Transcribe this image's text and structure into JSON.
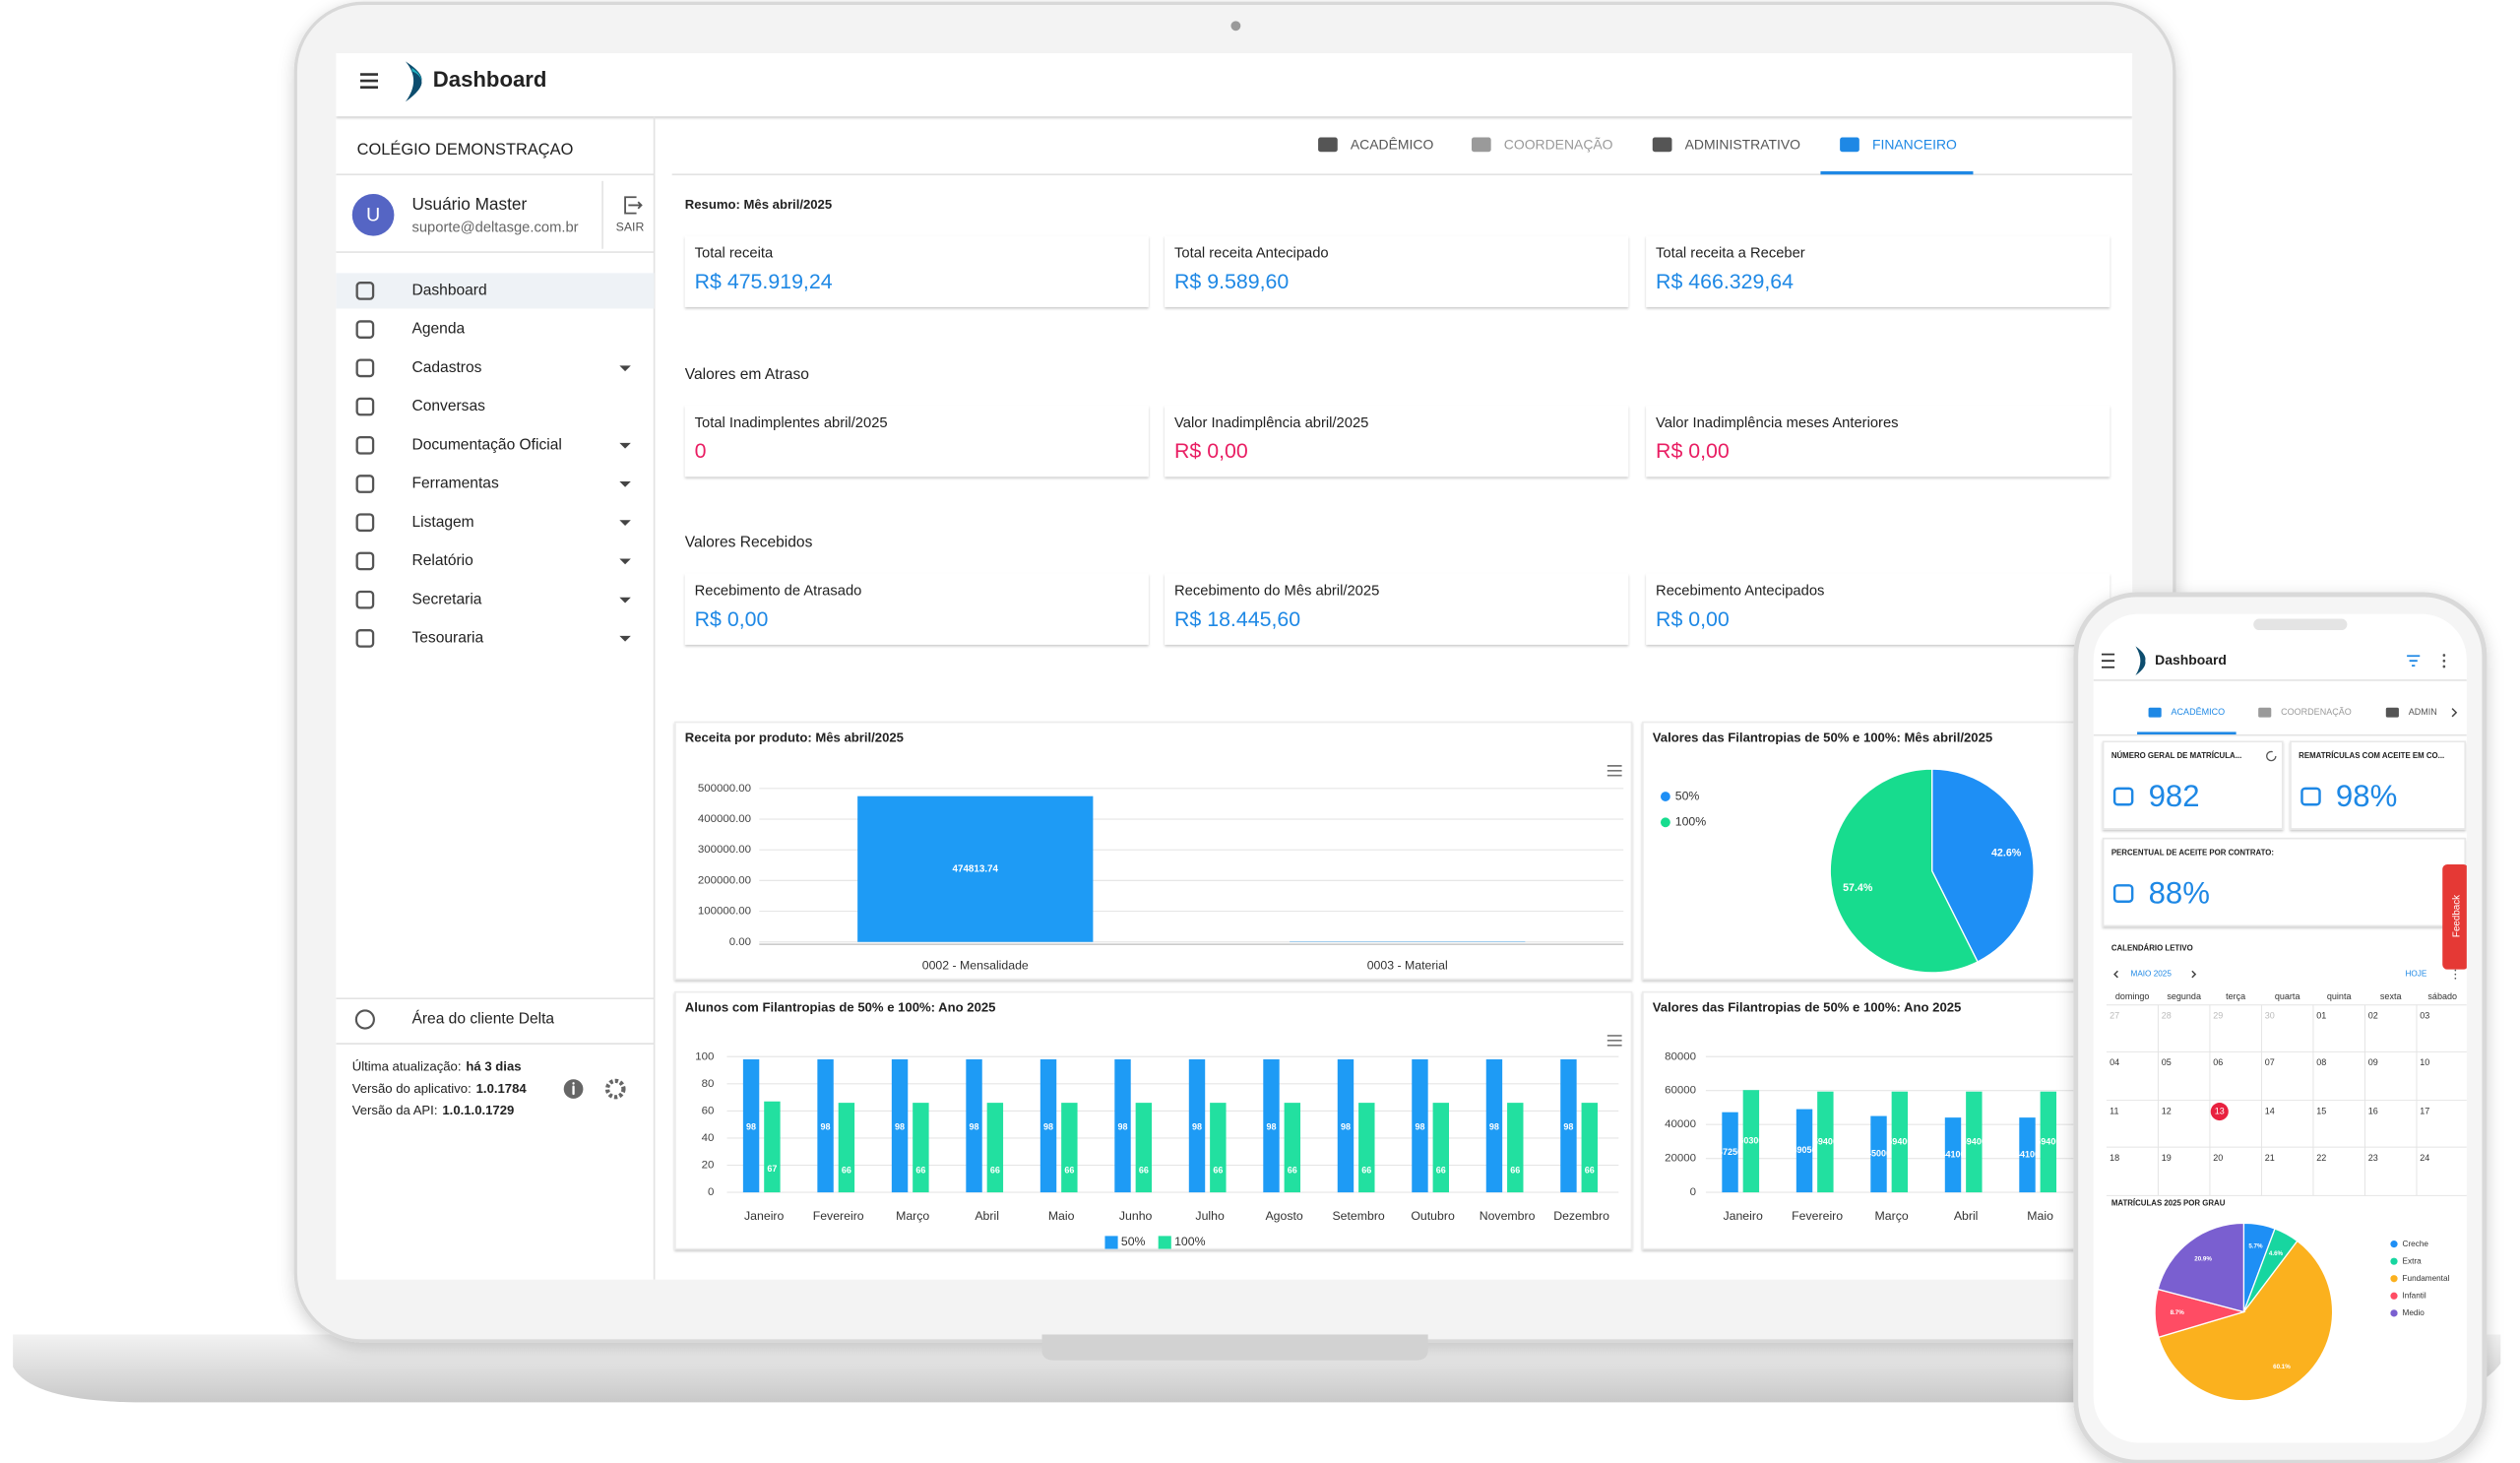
{
  "laptop": {
    "header": {
      "title": "Dashboard"
    },
    "school": "COLÉGIO DEMONSTRAÇAO",
    "user": {
      "initial": "U",
      "name": "Usuário Master",
      "email": "suporte@deltasge.com.br",
      "logout": "SAIR"
    },
    "menu": [
      {
        "label": "Dashboard",
        "submenu": false,
        "active": true
      },
      {
        "label": "Agenda",
        "submenu": false
      },
      {
        "label": "Cadastros",
        "submenu": true
      },
      {
        "label": "Conversas",
        "submenu": false
      },
      {
        "label": "Documentação Oficial",
        "submenu": true
      },
      {
        "label": "Ferramentas",
        "submenu": true
      },
      {
        "label": "Listagem",
        "submenu": true
      },
      {
        "label": "Relatório",
        "submenu": true
      },
      {
        "label": "Secretaria",
        "submenu": true
      },
      {
        "label": "Tesouraria",
        "submenu": true
      }
    ],
    "client_area": "Área do cliente Delta",
    "status": [
      {
        "label": "Última atualização:",
        "value": "há 3 dias"
      },
      {
        "label": "Versão do aplicativo:",
        "value": "1.0.1784"
      },
      {
        "label": "Versão da API:",
        "value": "1.0.1.0.1729"
      }
    ],
    "tabs": [
      {
        "label": "ACADÊMICO"
      },
      {
        "label": "COORDENAÇÃO",
        "disabled": true
      },
      {
        "label": "ADMINISTRATIVO"
      },
      {
        "label": "FINANCEIRO",
        "active": true
      }
    ],
    "sections": [
      {
        "title": "Resumo: Mês abril/2025",
        "cards": [
          {
            "label": "Total receita",
            "value": "R$ 475.919,24"
          },
          {
            "label": "Total receita Antecipado",
            "value": "R$ 9.589,60"
          },
          {
            "label": "Total receita a Receber",
            "value": "R$ 466.329,64"
          }
        ]
      },
      {
        "title": "Valores em Atraso",
        "cards": [
          {
            "label": "Total Inadimplentes abril/2025",
            "value": "0",
            "alert": true
          },
          {
            "label": "Valor Inadimplência abril/2025",
            "value": "R$ 0,00",
            "alert": true
          },
          {
            "label": "Valor Inadimplência meses Anteriores",
            "value": "R$ 0,00",
            "alert": true
          }
        ]
      },
      {
        "title": "Valores Recebidos",
        "cards": [
          {
            "label": "Recebimento de Atrasado",
            "value": "R$ 0,00"
          },
          {
            "label": "Recebimento do Mês abril/2025",
            "value": "R$ 18.445,60"
          },
          {
            "label": "Recebimento Antecipados",
            "value": "R$ 0,00"
          }
        ]
      }
    ],
    "charts": [
      {
        "type": "bar",
        "title": "Receita por produto: Mês abril/2025",
        "categories": [
          "0002 - Mensalidade",
          "0003 - Material"
        ],
        "values": [
          474813.74,
          1105.5
        ],
        "color": "#1e9bf5",
        "ylim": [
          0,
          500000
        ],
        "yticks": [
          {
            "value": 0,
            "label": "0.00"
          },
          {
            "value": 100000,
            "label": "100000.00"
          },
          {
            "value": 200000,
            "label": "200000.00"
          },
          {
            "value": 300000,
            "label": "300000.00"
          },
          {
            "value": 400000,
            "label": "400000.00"
          },
          {
            "value": 500000,
            "label": "500000.00"
          }
        ],
        "grid": true
      },
      {
        "type": "pie",
        "title": "Valores das Filantropias de 50% e 100%: Mês abril/2025",
        "categories": [
          "50%",
          "100%"
        ],
        "values": [
          42.6,
          57.4
        ],
        "value_labels": [
          "42.6%",
          "57.4%"
        ],
        "colors": [
          "#1e8ff5",
          "#17dc8e"
        ]
      },
      {
        "type": "grouped-bar",
        "title": "Alunos com Filantropias de 50% e 100%: Ano 2025",
        "categories": [
          "Janeiro",
          "Fevereiro",
          "Março",
          "Abril",
          "Maio",
          "Junho",
          "Julho",
          "Agosto",
          "Setembro",
          "Outubro",
          "Novembro",
          "Dezembro"
        ],
        "series": [
          {
            "name": "50%",
            "color": "#1e9bf5",
            "values": [
              98,
              98,
              98,
              98,
              98,
              98,
              98,
              98,
              98,
              98,
              98,
              98
            ]
          },
          {
            "name": "100%",
            "color": "#22e0a0",
            "values": [
              67,
              66,
              66,
              66,
              66,
              66,
              66,
              66,
              66,
              66,
              66,
              66
            ]
          }
        ],
        "ylim": [
          0,
          100
        ],
        "yticks": [
          0,
          20,
          40,
          60,
          80,
          100
        ],
        "grid": true,
        "legend": "bottom"
      },
      {
        "type": "grouped-bar",
        "title": "Valores das Filantropias de 50% e 100%: Ano 2025",
        "categories": [
          "Janeiro",
          "Fevereiro",
          "Março",
          "Abril",
          "Maio"
        ],
        "series": [
          {
            "color": "#1e9bf5",
            "values": [
              47250,
              49050,
              45000,
              44100,
              44100
            ]
          },
          {
            "color": "#22e0a0",
            "values": [
              60300,
              59400,
              59400,
              59400,
              59400
            ]
          }
        ],
        "ylim": [
          0,
          80000
        ],
        "yticks": [
          0,
          20000,
          40000,
          60000,
          80000
        ],
        "grid": true
      }
    ]
  },
  "phone": {
    "header": {
      "title": "Dashboard"
    },
    "tabs": [
      {
        "label": "ACADÊMICO",
        "active": true
      },
      {
        "label": "COORDENAÇÃO",
        "disabled": true
      },
      {
        "label": "ADMIN"
      }
    ],
    "cards": [
      {
        "label": "NÚMERO GERAL DE MATRÍCULA...",
        "value": "982"
      },
      {
        "label": "REMATRÍCULAS COM ACEITE EM CO...",
        "value": "98%"
      },
      {
        "label": "PERCENTUAL DE ACEITE POR CONTRATO:",
        "value": "88%"
      }
    ],
    "feedback": "Feedback",
    "calendar": {
      "title": "CALENDÁRIO LETIVO",
      "month": "MAIO 2025",
      "today": "HOJE",
      "selected": "13",
      "weekdays": [
        "domingo",
        "segunda",
        "terça",
        "quarta",
        "quinta",
        "sexta",
        "sábado"
      ],
      "weeks": [
        [
          "27",
          "28",
          "29",
          "30",
          "01",
          "02",
          "03"
        ],
        [
          "04",
          "05",
          "06",
          "07",
          "08",
          "09",
          "10"
        ],
        [
          "11",
          "12",
          "13",
          "14",
          "15",
          "16",
          "17"
        ],
        [
          "18",
          "19",
          "20",
          "21",
          "22",
          "23",
          "24"
        ]
      ]
    },
    "chart": {
      "type": "pie",
      "title": "MATRÍCULAS 2025 POR GRAU",
      "categories": [
        "Creche",
        "Extra",
        "Fundamental",
        "Infantil",
        "Medio"
      ],
      "values": [
        5.7,
        4.6,
        60.1,
        8.7,
        20.9
      ],
      "value_labels": [
        "5.7%",
        "4.6%",
        "60.1%",
        "8.7%",
        "20.9%"
      ],
      "colors": [
        "#1e8ff5",
        "#17d6a0",
        "#fbb11e",
        "#ff4c64",
        "#7a5fd0"
      ]
    }
  }
}
